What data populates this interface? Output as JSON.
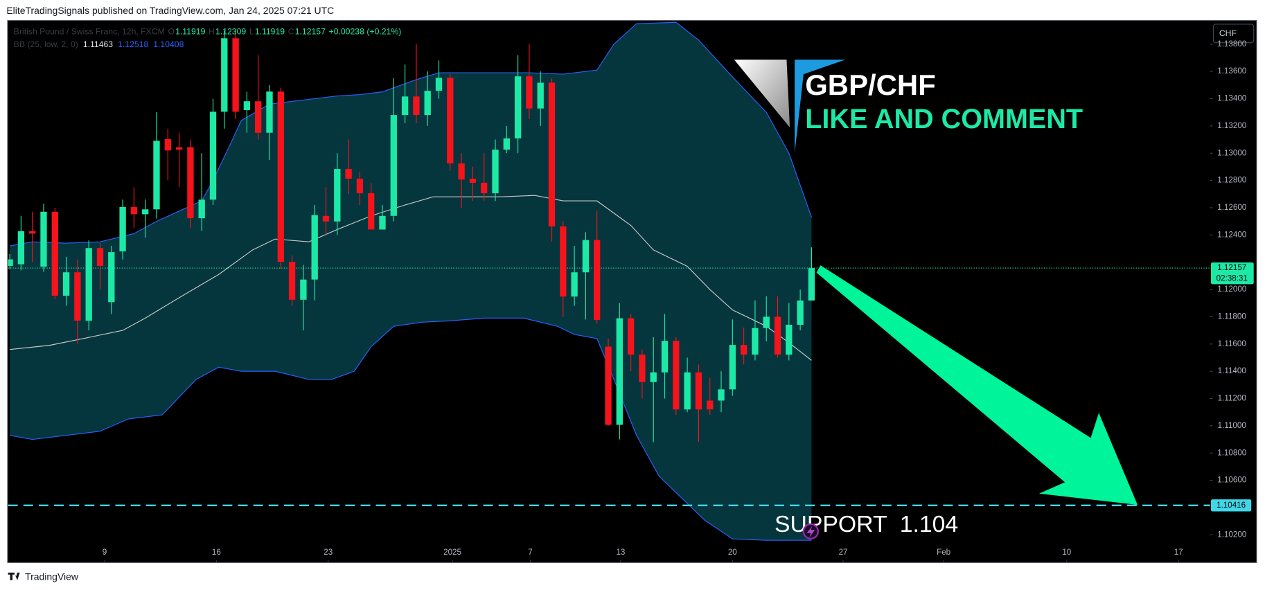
{
  "header": {
    "text": "EliteTradingSignals published on TradingView.com, Jan 24, 2025 07:21 UTC"
  },
  "footer": {
    "text": "TradingView"
  },
  "chart_data": {
    "type": "candlestick",
    "legend": {
      "symbol": "British Pound / Swiss Franc, 12h, FXCM",
      "open_label": "O",
      "open": "1.11919",
      "high_label": "H",
      "high": "1.12309",
      "low_label": "L",
      "low": "1.11919",
      "close_label": "C",
      "close": "1.12157",
      "change": "+0.00238",
      "change_pct": "(+0.21%)"
    },
    "bb_legend": {
      "name": "BB (25, low, 2, 0)",
      "basis": "1.11463",
      "upper": "1.12518",
      "lower": "1.10408"
    },
    "currency": "CHF",
    "up_color": "#1de9a6",
    "down_color": "#f5131c",
    "candles": {
      "open": [
        1.12173,
        1.12185,
        1.12428,
        1.12167,
        1.1257,
        1.11954,
        1.12126,
        1.11771,
        1.12304,
        1.11907,
        1.1228,
        1.12605,
        1.12552,
        1.12588,
        1.13103,
        1.13044,
        1.13044,
        1.12523,
        1.12659,
        1.13304,
        1.13843,
        1.13316,
        1.13381,
        1.1315,
        1.13452,
        1.12203,
        1.11925,
        1.12073,
        1.1254,
        1.12499,
        1.12884,
        1.12813,
        1.12706,
        1.1244,
        1.1254,
        1.1328,
        1.13416,
        1.1328,
        1.13458,
        1.13553,
        1.12925,
        1.12813,
        1.12783,
        1.12706,
        1.13026,
        1.13109,
        1.13564,
        1.13328,
        1.13517,
        1.12463,
        1.11948,
        1.12126,
        1.12363,
        1.11581,
        1.11007,
        1.11789,
        1.11522,
        1.11321,
        1.11392,
        1.11623,
        1.1112,
        1.11392,
        1.11185,
        1.11185,
        1.11267,
        1.11593,
        1.11522,
        1.11717,
        1.118,
        1.11522,
        1.11741,
        1.11919
      ],
      "high": [
        1.1226,
        1.1254,
        1.1257,
        1.1263,
        1.126,
        1.1224,
        1.1222,
        1.1236,
        1.1234,
        1.1232,
        1.1266,
        1.1275,
        1.1266,
        1.133,
        1.1318,
        1.1315,
        1.131,
        1.13,
        1.134,
        1.139,
        1.139,
        1.1345,
        1.1372,
        1.135,
        1.1348,
        1.1225,
        1.1218,
        1.1262,
        1.1275,
        1.13,
        1.131,
        1.1286,
        1.1278,
        1.1262,
        1.1355,
        1.1365,
        1.138,
        1.136,
        1.1368,
        1.1358,
        1.13,
        1.129,
        1.13,
        1.131,
        1.132,
        1.1372,
        1.138,
        1.136,
        1.1355,
        1.125,
        1.1232,
        1.1242,
        1.1258,
        1.1164,
        1.119,
        1.1182,
        1.1156,
        1.1165,
        1.1182,
        1.1165,
        1.115,
        1.1145,
        1.1135,
        1.114,
        1.1178,
        1.1172,
        1.1192,
        1.1195,
        1.1195,
        1.119,
        1.12,
        1.12309
      ],
      "low": [
        1.1215,
        1.1214,
        1.122,
        1.1213,
        1.1193,
        1.1188,
        1.116,
        1.117,
        1.12,
        1.1182,
        1.1222,
        1.1245,
        1.1238,
        1.1252,
        1.128,
        1.1275,
        1.1245,
        1.1243,
        1.1262,
        1.1318,
        1.1325,
        1.1315,
        1.131,
        1.1295,
        1.1215,
        1.1188,
        1.117,
        1.1192,
        1.124,
        1.124,
        1.127,
        1.1262,
        1.1244,
        1.1244,
        1.125,
        1.1322,
        1.1322,
        1.132,
        1.134,
        1.1287,
        1.126,
        1.1265,
        1.1265,
        1.1265,
        1.13,
        1.13,
        1.1325,
        1.132,
        1.1235,
        1.118,
        1.1188,
        1.1178,
        1.1175,
        1.11,
        1.109,
        1.114,
        1.112,
        1.1088,
        1.112,
        1.1108,
        1.111,
        1.1088,
        1.1108,
        1.111,
        1.1122,
        1.1145,
        1.1148,
        1.1162,
        1.115,
        1.1148,
        1.117,
        1.11919
      ],
      "close": [
        1.12221,
        1.12428,
        1.1241,
        1.1257,
        1.11954,
        1.12126,
        1.11771,
        1.12304,
        1.12173,
        1.12274,
        1.12605,
        1.12552,
        1.12588,
        1.13091,
        1.1302,
        1.13026,
        1.12523,
        1.12659,
        1.13304,
        1.13843,
        1.13304,
        1.13381,
        1.1315,
        1.13452,
        1.12203,
        1.11925,
        1.12073,
        1.12546,
        1.12499,
        1.12884,
        1.12813,
        1.12706,
        1.1244,
        1.1254,
        1.1328,
        1.13416,
        1.1328,
        1.13458,
        1.13553,
        1.12925,
        1.12807,
        1.12783,
        1.12706,
        1.13026,
        1.13109,
        1.13564,
        1.13328,
        1.13517,
        1.12463,
        1.11948,
        1.12126,
        1.12363,
        1.11777,
        1.11007,
        1.11789,
        1.11522,
        1.11321,
        1.11392,
        1.11623,
        1.1112,
        1.11392,
        1.1112,
        1.1112,
        1.11267,
        1.11593,
        1.11522,
        1.11717,
        1.118,
        1.11522,
        1.11741,
        1.11919,
        1.12157
      ]
    },
    "bands": [
      {
        "name": "upper",
        "color": "#2962ff",
        "x": [
          0,
          2,
          5,
          8,
          11,
          13,
          17,
          18,
          19.5,
          20.5,
          23,
          26,
          29,
          31,
          33,
          36,
          38,
          42,
          46,
          49,
          52,
          53.5,
          55.5,
          59,
          61,
          64,
          67,
          69,
          71
        ],
        "values": [
          1.1232,
          1.1235,
          1.1234,
          1.1235,
          1.1241,
          1.125,
          1.1265,
          1.128,
          1.1306,
          1.1324,
          1.1336,
          1.1339,
          1.1342,
          1.1343,
          1.1345,
          1.1354,
          1.1359,
          1.1359,
          1.1359,
          1.1358,
          1.1361,
          1.138,
          1.1395,
          1.1396,
          1.1383,
          1.1356,
          1.133,
          1.13,
          1.1253
        ]
      },
      {
        "name": "basis",
        "color": "#c8c8c8",
        "x": [
          0,
          3.5,
          6.5,
          10,
          12,
          15,
          18.5,
          21.5,
          23.5,
          26.5,
          29,
          32,
          35,
          37.5,
          43.5,
          46.5,
          49,
          52,
          55,
          57,
          60,
          62,
          64,
          67,
          69,
          71
        ],
        "values": [
          1.1156,
          1.1159,
          1.1164,
          1.117,
          1.1179,
          1.1194,
          1.1211,
          1.1229,
          1.1237,
          1.1235,
          1.1244,
          1.1254,
          1.1262,
          1.1268,
          1.1268,
          1.1269,
          1.1265,
          1.1265,
          1.1247,
          1.1229,
          1.1217,
          1.12,
          1.1185,
          1.1173,
          1.1161,
          1.1148
        ]
      },
      {
        "name": "lower",
        "color": "#2962ff",
        "x": [
          0,
          2,
          5,
          8,
          10.5,
          13.5,
          16.5,
          18.5,
          20.5,
          23.5,
          26.5,
          28.5,
          30.5,
          32,
          34,
          36.5,
          39,
          42,
          45.5,
          48.5,
          50,
          52,
          53.5,
          55.5,
          57.5,
          61.5,
          64,
          67,
          71
        ],
        "values": [
          1.1093,
          1.109,
          1.1093,
          1.1096,
          1.1105,
          1.1108,
          1.1134,
          1.1143,
          1.114,
          1.114,
          1.1134,
          1.1134,
          1.114,
          1.1158,
          1.1173,
          1.1176,
          1.1177,
          1.1179,
          1.1179,
          1.1173,
          1.1167,
          1.1164,
          1.1134,
          1.1093,
          1.1063,
          1.1031,
          1.1017,
          1.1016,
          1.1016
        ]
      }
    ],
    "band_fill": "#05363d",
    "ylim": [
      1.1,
      1.1397
    ],
    "yticks": [
      {
        "value": 1.102,
        "label": "1.10200"
      },
      {
        "value": 1.106,
        "label": "1.10600"
      },
      {
        "value": 1.108,
        "label": "1.10800"
      },
      {
        "value": 1.11,
        "label": "1.11000"
      },
      {
        "value": 1.112,
        "label": "1.11200"
      },
      {
        "value": 1.114,
        "label": "1.11400"
      },
      {
        "value": 1.116,
        "label": "1.11600"
      },
      {
        "value": 1.118,
        "label": "1.11800"
      },
      {
        "value": 1.12,
        "label": "1.12000"
      },
      {
        "value": 1.124,
        "label": "1.12400"
      },
      {
        "value": 1.126,
        "label": "1.12600"
      },
      {
        "value": 1.128,
        "label": "1.12800"
      },
      {
        "value": 1.13,
        "label": "1.13000"
      },
      {
        "value": 1.132,
        "label": "1.13200"
      },
      {
        "value": 1.134,
        "label": "1.13400"
      },
      {
        "value": 1.136,
        "label": "1.13600"
      },
      {
        "value": 1.138,
        "label": "1.13800"
      }
    ],
    "xlim": [
      -0.15,
      106.3
    ],
    "xticks": [
      {
        "value": 8.4,
        "label": "9"
      },
      {
        "value": 18.3,
        "label": "16"
      },
      {
        "value": 28.2,
        "label": "23"
      },
      {
        "value": 39.2,
        "label": "2025"
      },
      {
        "value": 46.1,
        "label": "7"
      },
      {
        "value": 54.1,
        "label": "13"
      },
      {
        "value": 64.0,
        "label": "20"
      },
      {
        "value": 73.8,
        "label": "27"
      },
      {
        "value": 82.7,
        "label": "Feb"
      },
      {
        "value": 93.6,
        "label": "10"
      },
      {
        "value": 103.5,
        "label": "17"
      }
    ],
    "last_price": {
      "value": 1.12157,
      "label": "1.12157",
      "countdown": "02:38:31",
      "color": "#1de9a6"
    },
    "support": {
      "value": 1.10416,
      "label": "1.10416",
      "color": "#3fd7e8"
    },
    "annotations": {
      "pair": "GBP/CHF",
      "cta": "LIKE AND COMMENT",
      "support_text": "SUPPORT  1.104"
    }
  }
}
